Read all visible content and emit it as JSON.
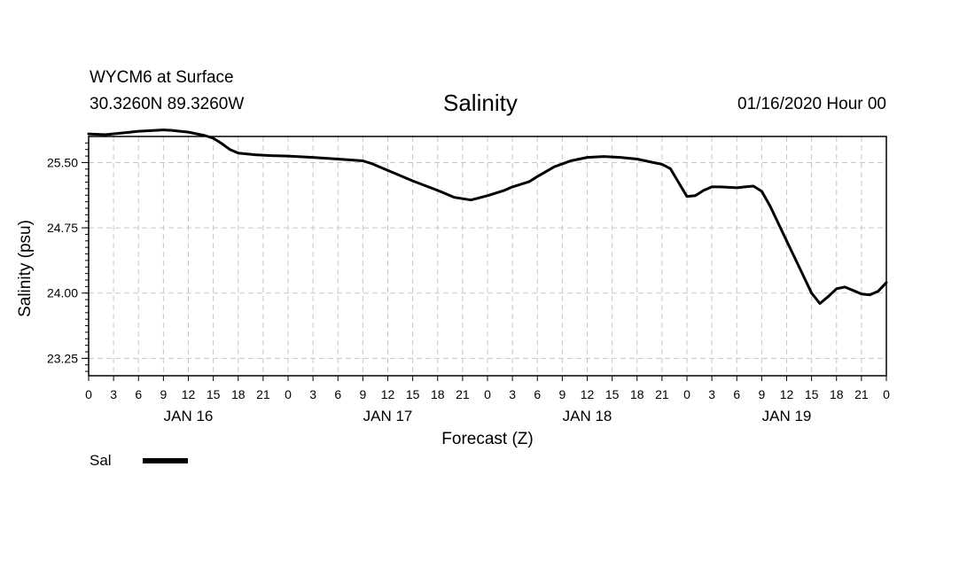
{
  "header": {
    "station": "WYCM6 at Surface",
    "coords": "30.3260N 89.3260W",
    "title": "Salinity",
    "date": "01/16/2020 Hour 00"
  },
  "legend": {
    "label": "Sal"
  },
  "chart_data": {
    "type": "line",
    "title": "Salinity",
    "xlabel": "Forecast (Z)",
    "ylabel": "Salinity (psu)",
    "xlim": [
      0,
      96
    ],
    "ylim": [
      23.05,
      25.8
    ],
    "yticks": [
      "25.50",
      "24.75",
      "24.00",
      "23.25"
    ],
    "ytick_values": [
      25.5,
      24.75,
      24.0,
      23.25
    ],
    "xtick_labels": [
      "0",
      "3",
      "6",
      "9",
      "12",
      "15",
      "18",
      "21",
      "0",
      "3",
      "6",
      "9",
      "12",
      "15",
      "18",
      "21",
      "0",
      "3",
      "6",
      "9",
      "12",
      "15",
      "18",
      "21",
      "0",
      "3",
      "6",
      "9",
      "12",
      "15",
      "18",
      "21",
      "0"
    ],
    "date_labels": [
      "JAN 16",
      "JAN 17",
      "JAN 18",
      "JAN 19"
    ],
    "date_label_hours": [
      12,
      36,
      60,
      84
    ],
    "grid": true,
    "series": [
      {
        "name": "Sal",
        "x": [
          0,
          2,
          4,
          6,
          8,
          9,
          10,
          12,
          14,
          15,
          16,
          17,
          18,
          20,
          22,
          24,
          27,
          30,
          33,
          34,
          36,
          39,
          42,
          42.5,
          44,
          46,
          48,
          50,
          51,
          53,
          54,
          56,
          58,
          60,
          62,
          64,
          66,
          68,
          69,
          70,
          72,
          73,
          74,
          75,
          76,
          78,
          79,
          80,
          81,
          82,
          84,
          86,
          87,
          88,
          89,
          90,
          91,
          92,
          93,
          94,
          95,
          96
        ],
        "y": [
          25.83,
          25.82,
          25.84,
          25.86,
          25.87,
          25.875,
          25.87,
          25.85,
          25.81,
          25.78,
          25.72,
          25.65,
          25.61,
          25.59,
          25.58,
          25.575,
          25.56,
          25.54,
          25.52,
          25.49,
          25.41,
          25.29,
          25.18,
          25.16,
          25.1,
          25.07,
          25.12,
          25.18,
          25.22,
          25.28,
          25.34,
          25.45,
          25.52,
          25.56,
          25.57,
          25.56,
          25.54,
          25.5,
          25.48,
          25.43,
          25.11,
          25.12,
          25.18,
          25.22,
          25.22,
          25.21,
          25.22,
          25.23,
          25.17,
          25.0,
          24.6,
          24.2,
          24.0,
          23.88,
          23.96,
          24.05,
          24.07,
          24.03,
          23.99,
          23.98,
          24.02,
          24.12
        ]
      }
    ]
  }
}
